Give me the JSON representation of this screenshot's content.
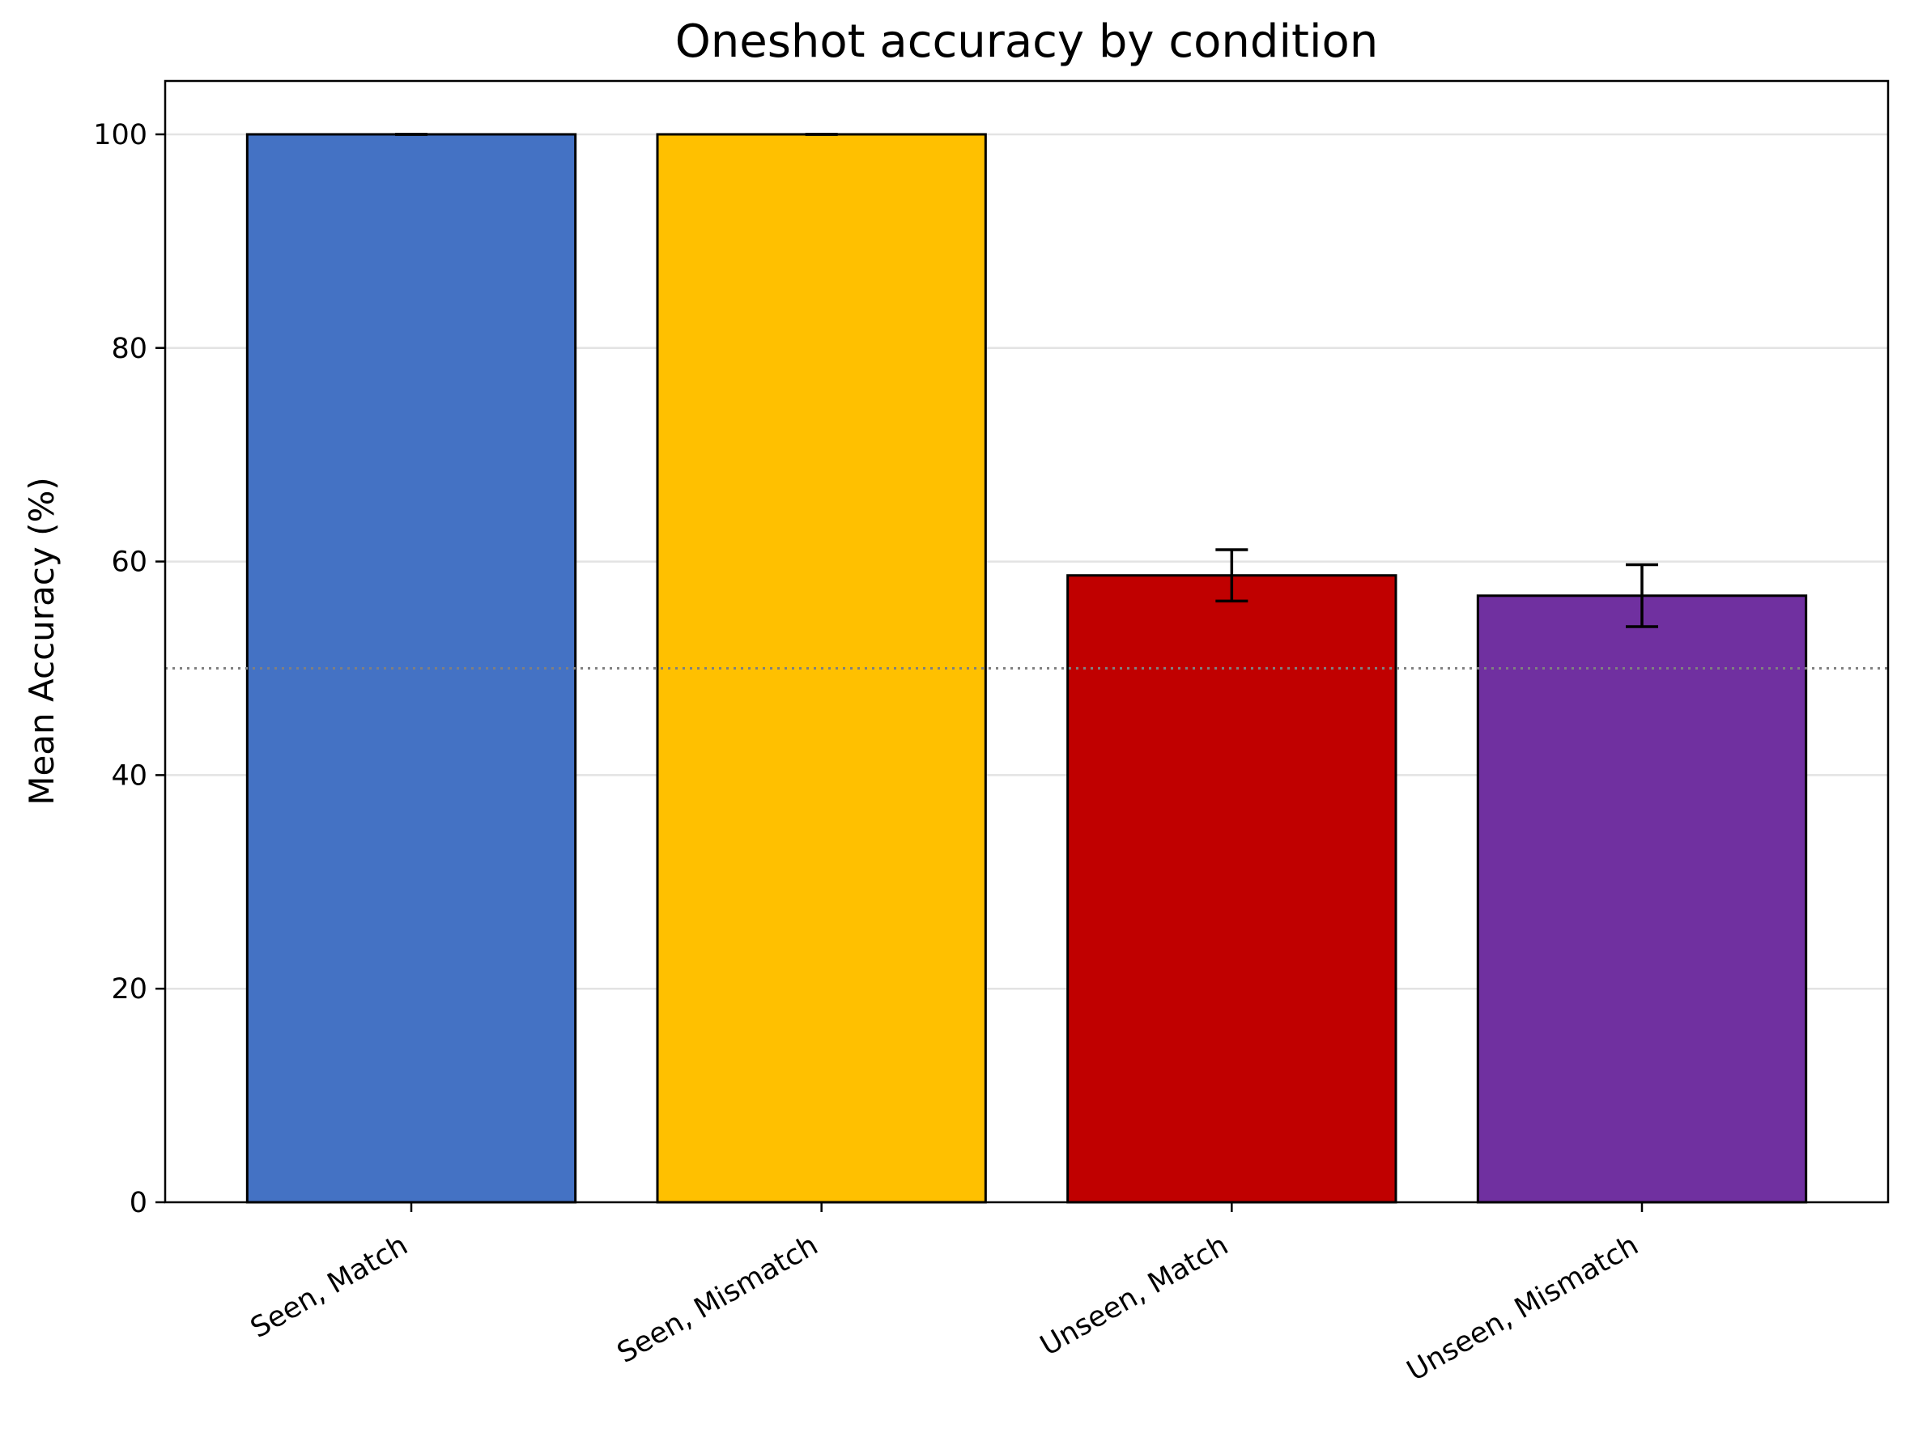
{
  "chart_data": {
    "type": "bar",
    "title": "Oneshot accuracy by condition",
    "xlabel": "",
    "ylabel": "Mean Accuracy (%)",
    "categories": [
      "Seen, Match",
      "Seen, Mismatch",
      "Unseen, Match",
      "Unseen, Mismatch"
    ],
    "values": [
      100.0,
      100.0,
      58.7,
      56.8
    ],
    "error_bars": [
      [
        100.0,
        100.0
      ],
      [
        100.0,
        100.0
      ],
      [
        56.3,
        61.1
      ],
      [
        53.9,
        59.7
      ]
    ],
    "colors": [
      "#4472C4",
      "#FFC000",
      "#C00000",
      "#7030A0"
    ],
    "ylim": [
      0,
      105
    ],
    "yticks": [
      0,
      20,
      40,
      60,
      80,
      100
    ],
    "reference_line": 50,
    "grid": "y",
    "legend": "none"
  }
}
